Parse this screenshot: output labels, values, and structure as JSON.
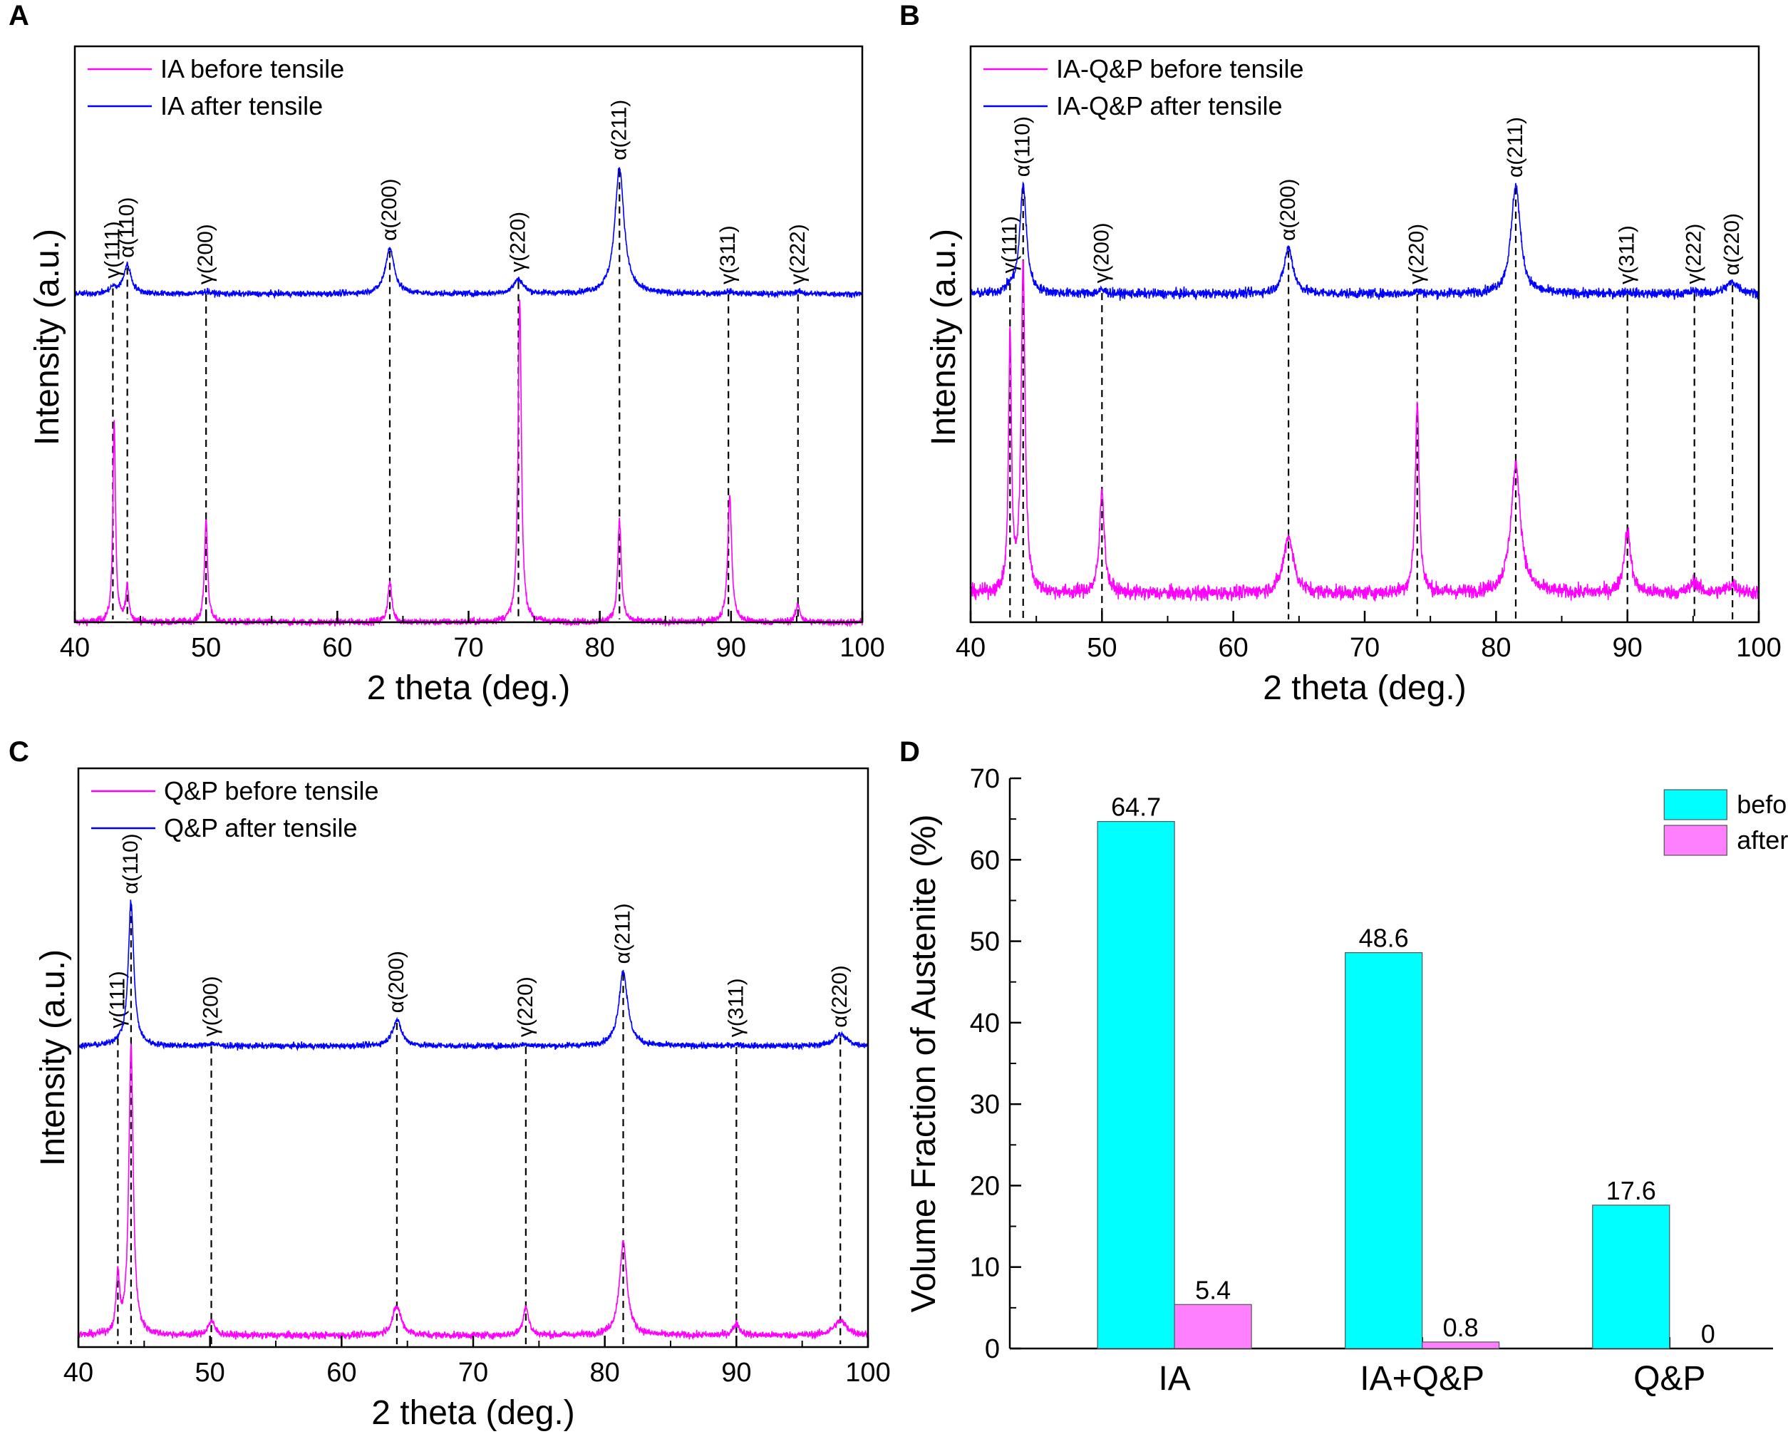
{
  "colors": {
    "before": "#ff00ff",
    "after": "#0000ff",
    "bar_before": "#00ffff",
    "bar_after": "#ff80ff",
    "axis": "#000000"
  },
  "chart_data": [
    {
      "panel_label": "A",
      "type": "line",
      "xlabel": "2 theta (deg.)",
      "ylabel": "Intensity (a.u.)",
      "xlim": [
        40,
        100
      ],
      "xticks": [
        40,
        50,
        60,
        70,
        80,
        90,
        100
      ],
      "ylim": [
        0,
        1
      ],
      "legend_position": "top-left",
      "series": [
        {
          "name": "IA before tensile",
          "color_key": "before",
          "baseline": 0.0,
          "noise": 0.006,
          "peaks": [
            [
              43.0,
              0.35,
              0.12
            ],
            [
              44.0,
              0.06,
              0.15
            ],
            [
              50.0,
              0.18,
              0.14
            ],
            [
              64.0,
              0.07,
              0.18
            ],
            [
              73.9,
              0.56,
              0.15
            ],
            [
              81.5,
              0.18,
              0.16
            ],
            [
              89.9,
              0.22,
              0.18
            ],
            [
              95.1,
              0.03,
              0.2
            ]
          ]
        },
        {
          "name": "IA after tensile",
          "color_key": "after",
          "baseline": 0.57,
          "noise": 0.005,
          "peaks": [
            [
              42.9,
              0.01,
              0.3
            ],
            [
              44.0,
              0.05,
              0.35
            ],
            [
              50.0,
              0.004,
              0.4
            ],
            [
              64.0,
              0.08,
              0.4
            ],
            [
              73.8,
              0.025,
              0.45
            ],
            [
              81.5,
              0.22,
              0.42
            ],
            [
              89.8,
              0.004,
              0.4
            ],
            [
              95.1,
              0.004,
              0.4
            ]
          ]
        }
      ],
      "annotations": [
        {
          "label": "γ(111)",
          "x": 42.9
        },
        {
          "label": "α(110)",
          "x": 44.0
        },
        {
          "label": "γ(200)",
          "x": 50.0
        },
        {
          "label": "α(200)",
          "x": 64.0
        },
        {
          "label": "γ(220)",
          "x": 73.8
        },
        {
          "label": "α(211)",
          "x": 81.5
        },
        {
          "label": "γ(311)",
          "x": 89.8
        },
        {
          "label": "γ(222)",
          "x": 95.1
        }
      ]
    },
    {
      "panel_label": "B",
      "type": "line",
      "xlabel": "2 theta (deg.)",
      "ylabel": "Intensity (a.u.)",
      "xlim": [
        40,
        100
      ],
      "xticks": [
        40,
        50,
        60,
        70,
        80,
        90,
        100
      ],
      "ylim": [
        0,
        1
      ],
      "legend_position": "top-left",
      "series": [
        {
          "name": "IA-Q&P before tensile",
          "color_key": "before",
          "baseline": 0.05,
          "noise": 0.012,
          "peaks": [
            [
              43.0,
              0.45,
              0.13
            ],
            [
              44.0,
              0.57,
              0.18
            ],
            [
              50.0,
              0.18,
              0.22
            ],
            [
              64.2,
              0.1,
              0.45
            ],
            [
              74.0,
              0.33,
              0.18
            ],
            [
              81.5,
              0.22,
              0.45
            ],
            [
              90.0,
              0.11,
              0.3
            ],
            [
              95.1,
              0.02,
              0.35
            ],
            [
              98.0,
              0.015,
              0.5
            ]
          ]
        },
        {
          "name": "IA-Q&P after tensile",
          "color_key": "after",
          "baseline": 0.57,
          "noise": 0.008,
          "peaks": [
            [
              43.0,
              0.008,
              0.4
            ],
            [
              44.0,
              0.19,
              0.3
            ],
            [
              50.0,
              0.006,
              0.4
            ],
            [
              64.2,
              0.08,
              0.42
            ],
            [
              74.0,
              0.004,
              0.4
            ],
            [
              81.5,
              0.19,
              0.42
            ],
            [
              90.0,
              0.004,
              0.4
            ],
            [
              95.1,
              0.004,
              0.4
            ],
            [
              98.0,
              0.02,
              0.6
            ]
          ]
        }
      ],
      "annotations": [
        {
          "label": "γ(111)",
          "x": 43.0
        },
        {
          "label": "α(110)",
          "x": 44.0
        },
        {
          "label": "γ(200)",
          "x": 50.0
        },
        {
          "label": "α(200)",
          "x": 64.2
        },
        {
          "label": "γ(220)",
          "x": 74.0
        },
        {
          "label": "α(211)",
          "x": 81.5
        },
        {
          "label": "γ(311)",
          "x": 90.0
        },
        {
          "label": "γ(222)",
          "x": 95.1
        },
        {
          "label": "α(220)",
          "x": 98.0
        }
      ]
    },
    {
      "panel_label": "C",
      "type": "line",
      "xlabel": "2 theta (deg.)",
      "ylabel": "Intensity (a.u.)",
      "xlim": [
        40,
        100
      ],
      "xticks": [
        40,
        50,
        60,
        70,
        80,
        90,
        100
      ],
      "ylim": [
        0,
        1
      ],
      "legend_position": "top-left",
      "series": [
        {
          "name": "Q&P before tensile",
          "color_key": "before",
          "baseline": 0.02,
          "noise": 0.006,
          "peaks": [
            [
              43.0,
              0.1,
              0.15
            ],
            [
              44.0,
              0.5,
              0.2
            ],
            [
              50.1,
              0.025,
              0.3
            ],
            [
              64.2,
              0.05,
              0.4
            ],
            [
              74.0,
              0.05,
              0.25
            ],
            [
              81.4,
              0.16,
              0.35
            ],
            [
              90.0,
              0.02,
              0.3
            ],
            [
              97.9,
              0.025,
              0.6
            ]
          ]
        },
        {
          "name": "Q&P after tensile",
          "color_key": "after",
          "baseline": 0.52,
          "noise": 0.005,
          "peaks": [
            [
              43.0,
              0.004,
              0.4
            ],
            [
              44.0,
              0.25,
              0.25
            ],
            [
              50.1,
              0.004,
              0.4
            ],
            [
              64.2,
              0.045,
              0.42
            ],
            [
              74.0,
              0.003,
              0.4
            ],
            [
              81.4,
              0.13,
              0.4
            ],
            [
              90.0,
              0.003,
              0.4
            ],
            [
              97.9,
              0.02,
              0.6
            ]
          ]
        }
      ],
      "annotations": [
        {
          "label": "γ(111)",
          "x": 43.0
        },
        {
          "label": "α(110)",
          "x": 44.0
        },
        {
          "label": "γ(200)",
          "x": 50.1
        },
        {
          "label": "α(200)",
          "x": 64.2
        },
        {
          "label": "γ(220)",
          "x": 74.0
        },
        {
          "label": "α(211)",
          "x": 81.4
        },
        {
          "label": "γ(311)",
          "x": 90.0
        },
        {
          "label": "α(220)",
          "x": 97.9
        }
      ]
    },
    {
      "panel_label": "D",
      "type": "bar",
      "ylabel": "Volume Fraction of Austenite (%)",
      "ylim": [
        0,
        70
      ],
      "yticks": [
        0,
        10,
        20,
        30,
        40,
        50,
        60,
        70
      ],
      "categories": [
        "IA",
        "IA+Q&P",
        "Q&P"
      ],
      "legend_position": "top-right",
      "series": [
        {
          "name": "before tensile",
          "color_key": "bar_before",
          "values": [
            64.7,
            48.6,
            17.6
          ],
          "labels": [
            "64.7",
            "48.6",
            "17.6"
          ]
        },
        {
          "name": "after tensile",
          "color_key": "bar_after",
          "values": [
            5.4,
            0.8,
            0
          ],
          "labels": [
            "5.4",
            "0.8",
            "0"
          ]
        }
      ]
    }
  ]
}
